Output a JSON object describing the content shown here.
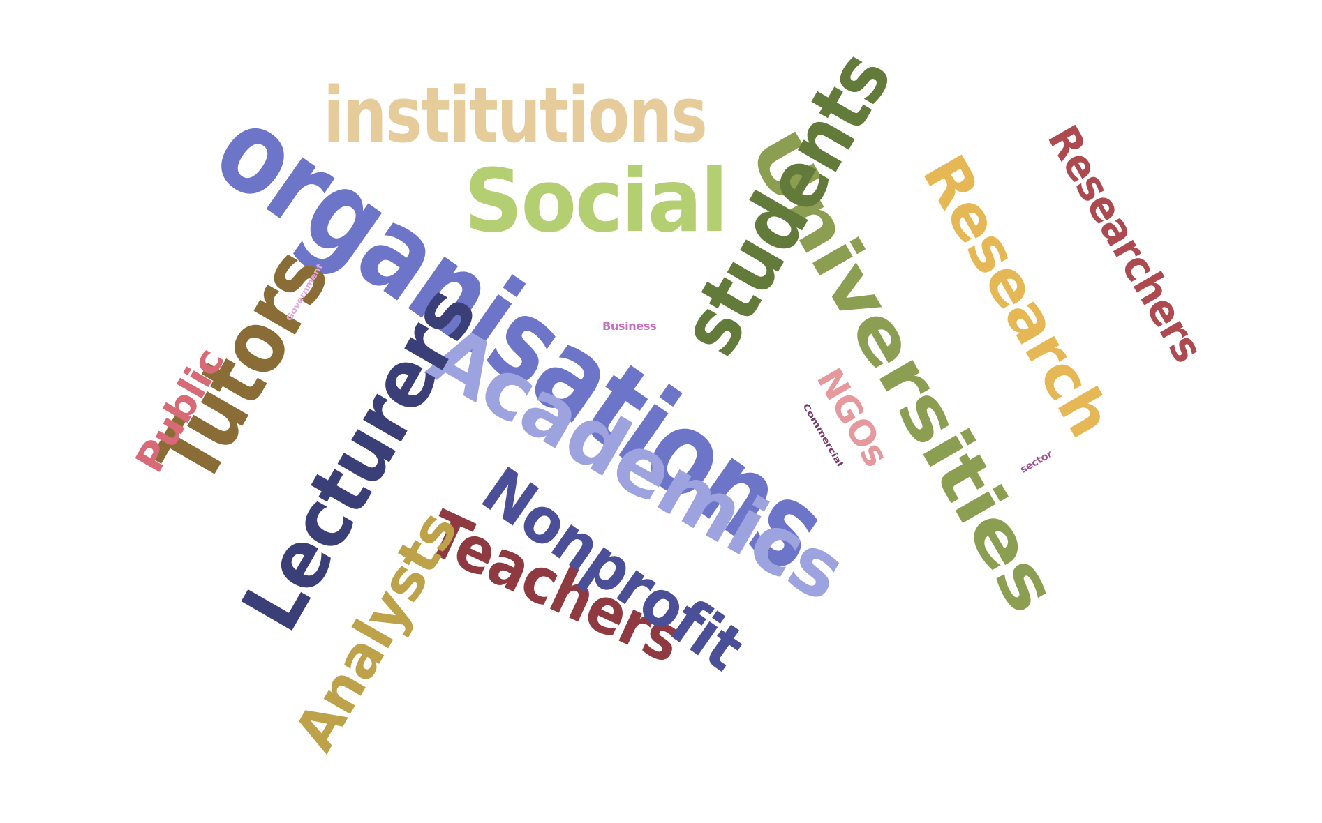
{
  "words": [
    {
      "text": "organisations",
      "color": "#6d75c9"
    },
    {
      "text": "Universities",
      "color": "#8c9e52"
    },
    {
      "text": "Academics",
      "color": "#9da3de"
    },
    {
      "text": "Lecturers",
      "color": "#3a3f78"
    },
    {
      "text": "students",
      "color": "#627a3a"
    },
    {
      "text": "Tutors",
      "color": "#8a6c36"
    },
    {
      "text": "Teachers",
      "color": "#8e3a40"
    },
    {
      "text": "Research",
      "color": "#e6b855"
    },
    {
      "text": "Social",
      "color": "#b4cf72"
    },
    {
      "text": "Nonprofit",
      "color": "#4a4f98"
    },
    {
      "text": "Analysts",
      "color": "#bda24a"
    },
    {
      "text": "institutions",
      "color": "#e6cc9a"
    },
    {
      "text": "Researchers",
      "color": "#ad4a4f"
    },
    {
      "text": "Public",
      "color": "#d76a76"
    },
    {
      "text": "NGOs",
      "color": "#e6999d"
    },
    {
      "text": "Business",
      "color": "#cc6ec0"
    },
    {
      "text": "Government",
      "color": "#e7a8dc"
    },
    {
      "text": "Commercial",
      "color": "#7a3b6c"
    },
    {
      "text": "sector",
      "color": "#a05396"
    }
  ]
}
